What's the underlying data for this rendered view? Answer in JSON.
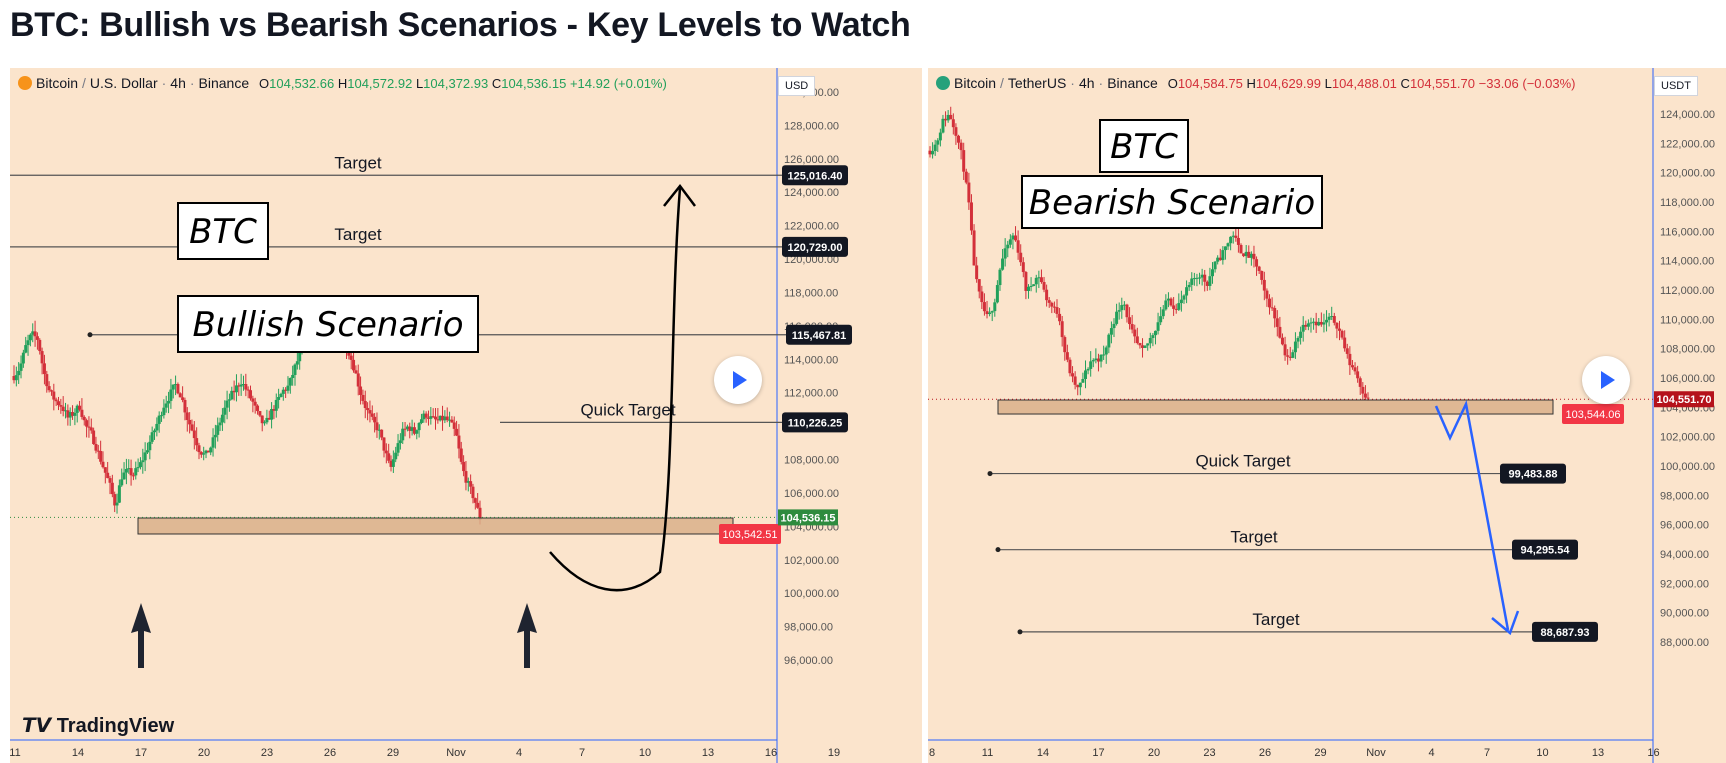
{
  "page_title": "BTC: Bullish vs Bearish Scenarios - Key Levels to Watch",
  "colors": {
    "bg": "#fbe4cc",
    "up": "#22a05b",
    "down": "#d3303a",
    "accent": "#2962ff",
    "zone": "#d9b08a",
    "text": "#131722"
  },
  "left": {
    "header": {
      "symbol": "Bitcoin",
      "pair": "U.S. Dollar",
      "tf": "4h",
      "exchange": "Binance",
      "o": "104,532.66",
      "h": "104,572.92",
      "l": "104,372.93",
      "c": "104,536.15",
      "chg": "+14.92 (+0.01%)"
    },
    "currency": "USD",
    "badge_btc": "BTC",
    "badge_scenario": "Bullish Scenario",
    "logo": "TradingView",
    "chart_data": {
      "type": "candlestick",
      "y_ticks": [
        "130,000.00",
        "128,000.00",
        "126,000.00",
        "124,000.00",
        "122,000.00",
        "120,000.00",
        "118,000.00",
        "116,000.00",
        "114,000.00",
        "112,000.00",
        "110,000.00",
        "108,000.00",
        "106,000.00",
        "104,000.00",
        "102,000.00",
        "100,000.00",
        "98,000.00",
        "96,000.00"
      ],
      "x_ticks": [
        "11",
        "14",
        "17",
        "20",
        "23",
        "26",
        "29",
        "Nov",
        "4",
        "7",
        "10",
        "13",
        "16",
        "19"
      ],
      "levels": [
        {
          "name": "Target",
          "value": 125016.4,
          "label": "125,016.40"
        },
        {
          "name": "Target",
          "value": 120729.0,
          "label": "120,729.00"
        },
        {
          "name": "Target",
          "value": 115467.81,
          "label": "115,467.81"
        },
        {
          "name": "Quick Target",
          "value": 110226.25,
          "label": "110,226.25"
        }
      ],
      "support_zone": {
        "low": 103542.51,
        "high": 104500,
        "label": "103,542.51"
      },
      "last_price": {
        "value": 104536.15,
        "label": "104,536.15"
      },
      "close_path": [
        113000,
        113500,
        114800,
        115500,
        115200,
        113200,
        112000,
        111500,
        111200,
        110500,
        110800,
        111200,
        110000,
        109500,
        108500,
        107500,
        106500,
        105200,
        107000,
        107300,
        107100,
        107600,
        108400,
        109300,
        110200,
        111200,
        111800,
        112500,
        111800,
        110500,
        109600,
        108600,
        108200,
        108800,
        109800,
        110800,
        111600,
        112200,
        112700,
        112100,
        111400,
        110500,
        110000,
        110800,
        111400,
        112100,
        112400,
        113500,
        114400,
        115200,
        116100,
        115600,
        115200,
        114800,
        115200,
        115600,
        114500,
        113400,
        112000,
        111000,
        110300,
        109800,
        108600,
        107400,
        108600,
        109600,
        110000,
        109600,
        110400,
        110700,
        110400,
        110300,
        110500,
        110200,
        109500,
        107500,
        106500,
        105700,
        104500
      ]
    }
  },
  "right": {
    "header": {
      "symbol": "Bitcoin",
      "pair": "TetherUS",
      "tf": "4h",
      "exchange": "Binance",
      "o": "104,584.75",
      "h": "104,629.99",
      "l": "104,488.01",
      "c": "104,551.70",
      "chg": "−33.06 (−0.03%)"
    },
    "currency": "USDT",
    "badge_btc": "BTC",
    "badge_scenario": "Bearish Scenario",
    "chart_data": {
      "type": "candlestick",
      "y_ticks": [
        "124,000.00",
        "122,000.00",
        "120,000.00",
        "118,000.00",
        "116,000.00",
        "114,000.00",
        "112,000.00",
        "110,000.00",
        "108,000.00",
        "106,000.00",
        "104,000.00",
        "102,000.00",
        "100,000.00",
        "98,000.00",
        "96,000.00",
        "94,000.00",
        "92,000.00",
        "90,000.00",
        "88,000.00"
      ],
      "x_ticks": [
        "8",
        "11",
        "14",
        "17",
        "20",
        "23",
        "26",
        "29",
        "Nov",
        "4",
        "7",
        "10",
        "13",
        "16"
      ],
      "levels": [
        {
          "name": "Quick Target",
          "value": 99483.88,
          "label": "99,483.88"
        },
        {
          "name": "Target",
          "value": 94295.54,
          "label": "94,295.54"
        },
        {
          "name": "Target",
          "value": 88687.93,
          "label": "88,687.93"
        }
      ],
      "support_zone": {
        "low": 103544.06,
        "high": 104500,
        "label": "103,544.06"
      },
      "last_price": {
        "value": 104551.7,
        "label": "104,551.70"
      },
      "close_path": [
        121500,
        122000,
        123500,
        124000,
        122800,
        121000,
        118000,
        113000,
        111000,
        110000,
        111200,
        113800,
        115000,
        115800,
        114200,
        111800,
        112600,
        113000,
        111500,
        110800,
        110400,
        107600,
        106000,
        105200,
        106200,
        107200,
        107300,
        107500,
        109300,
        110400,
        111400,
        109500,
        108400,
        107800,
        108500,
        109400,
        110500,
        111400,
        110800,
        111200,
        112100,
        112800,
        113100,
        112400,
        113600,
        114200,
        115000,
        115900,
        114800,
        114400,
        114200,
        113400,
        111600,
        110800,
        109500,
        107800,
        107200,
        108800,
        109600,
        110000,
        109800,
        109600,
        110100,
        109800,
        108700,
        107100,
        106500,
        105300,
        104500
      ]
    }
  }
}
